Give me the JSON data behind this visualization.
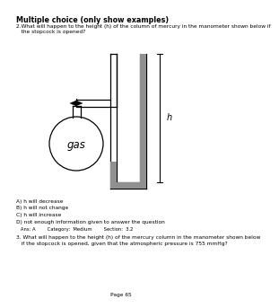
{
  "title": "Multiple choice (only show examples)",
  "q2_line1": "2.What will happen to the height (h) of the column of mercury in the manometer shown below if",
  "q2_line2": "   the stopcock is opened?",
  "gas_label": "gas",
  "h_label": "h",
  "options": [
    "A) h will decrease",
    "B) h will not change",
    "C) h will increase",
    "D) not enough information given to answer the question"
  ],
  "answer_line": "   Ans: A        Category:  Medium        Section:  3.2",
  "q3_line1": "3. What will happen to the height (h) of the mercury column in the manometer shown below",
  "q3_line2": "   if the stopcock is opened, given that the atmospheric pressure is 755 mmHg?",
  "footer": "Page 65",
  "bg_color": "#ffffff",
  "fg_color": "#000000",
  "mercury_color": "#909090"
}
